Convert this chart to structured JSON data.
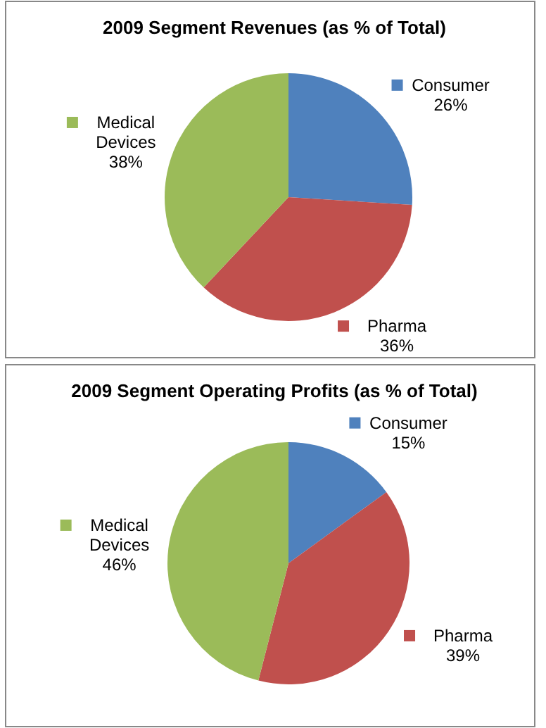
{
  "chart_data": [
    {
      "type": "pie",
      "title": "2009 Segment Revenues (as % of Total)",
      "categories": [
        "Consumer",
        "Pharma",
        "Medical Devices"
      ],
      "values": [
        26,
        36,
        38
      ],
      "value_labels": [
        "26%",
        "36%",
        "38%"
      ],
      "colors": [
        "#4f81bd",
        "#c0504d",
        "#9bbb59"
      ],
      "legend": "right"
    },
    {
      "type": "pie",
      "title": "2009 Segment Operating Profits (as % of Total)",
      "categories": [
        "Consumer",
        "Pharma",
        "Medical Devices"
      ],
      "values": [
        15,
        39,
        46
      ],
      "value_labels": [
        "15%",
        "39%",
        "46%"
      ],
      "colors": [
        "#4f81bd",
        "#c0504d",
        "#9bbb59"
      ],
      "legend": "top left"
    }
  ]
}
